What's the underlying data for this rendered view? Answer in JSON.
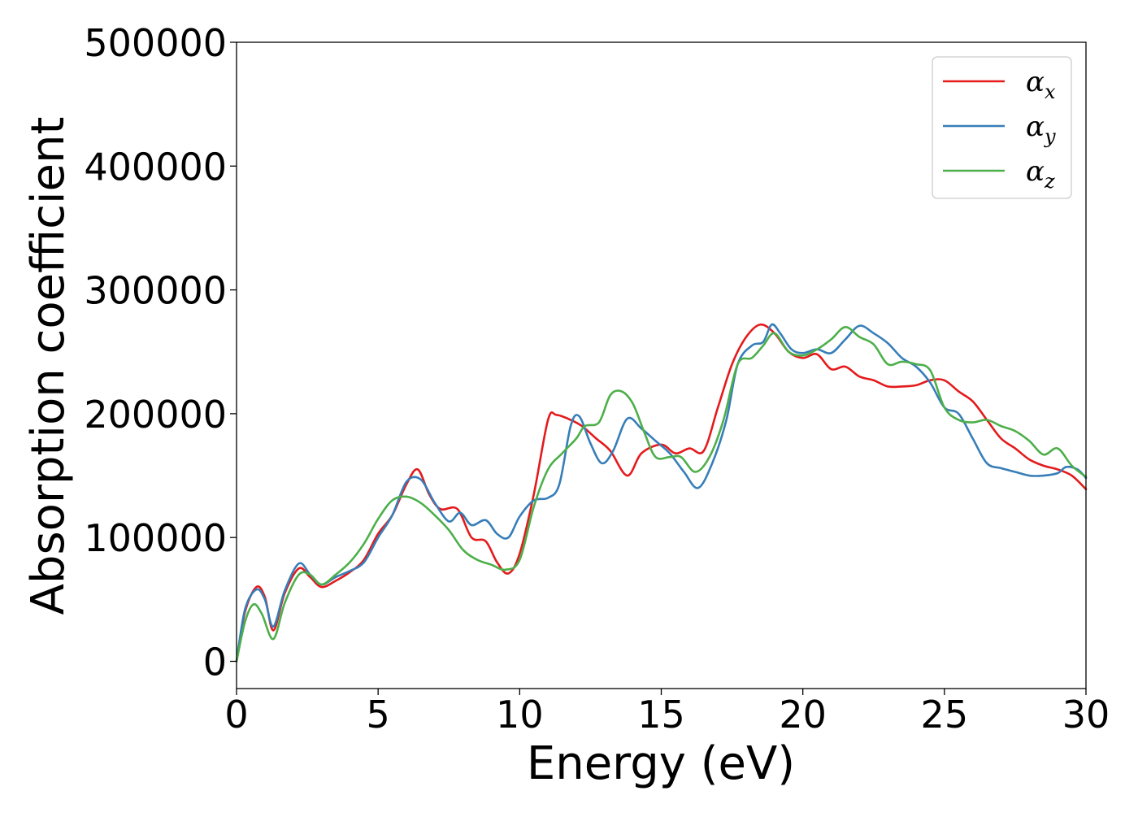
{
  "chart_data": {
    "type": "line",
    "title": "",
    "xlabel": "Energy (eV)",
    "ylabel": "Absorption coefficient",
    "xlim": [
      0,
      30
    ],
    "ylim": [
      -22000,
      500000
    ],
    "x_ticks": [
      0,
      5,
      10,
      15,
      20,
      25,
      30
    ],
    "y_ticks": [
      0,
      100000,
      200000,
      300000,
      400000,
      500000
    ],
    "grid": false,
    "legend_position": "top-right",
    "series": [
      {
        "name": "αx",
        "legend_symbol": "α",
        "legend_subscript": "x",
        "color": "#e41a1c",
        "points": [
          [
            0,
            0
          ],
          [
            0.3,
            40000
          ],
          [
            0.7,
            60000
          ],
          [
            1.0,
            52000
          ],
          [
            1.3,
            25000
          ],
          [
            1.7,
            55000
          ],
          [
            2.2,
            75000
          ],
          [
            2.6,
            68000
          ],
          [
            3.0,
            60000
          ],
          [
            3.5,
            65000
          ],
          [
            4.0,
            72000
          ],
          [
            4.5,
            82000
          ],
          [
            5.0,
            103000
          ],
          [
            5.5,
            118000
          ],
          [
            6.0,
            143000
          ],
          [
            6.4,
            155000
          ],
          [
            6.8,
            135000
          ],
          [
            7.2,
            123000
          ],
          [
            7.8,
            123000
          ],
          [
            8.3,
            100000
          ],
          [
            8.8,
            97000
          ],
          [
            9.2,
            80000
          ],
          [
            9.6,
            71000
          ],
          [
            10.0,
            87000
          ],
          [
            10.5,
            135000
          ],
          [
            11.0,
            195000
          ],
          [
            11.3,
            199000
          ],
          [
            11.8,
            195000
          ],
          [
            12.2,
            190000
          ],
          [
            12.7,
            180000
          ],
          [
            13.2,
            170000
          ],
          [
            13.8,
            150000
          ],
          [
            14.3,
            168000
          ],
          [
            15.0,
            175000
          ],
          [
            15.5,
            168000
          ],
          [
            16.0,
            172000
          ],
          [
            16.5,
            170000
          ],
          [
            17.0,
            205000
          ],
          [
            17.5,
            240000
          ],
          [
            18.0,
            262000
          ],
          [
            18.5,
            272000
          ],
          [
            19.0,
            265000
          ],
          [
            19.5,
            250000
          ],
          [
            20.0,
            245000
          ],
          [
            20.5,
            248000
          ],
          [
            21.0,
            236000
          ],
          [
            21.5,
            238000
          ],
          [
            22.0,
            230000
          ],
          [
            22.5,
            227000
          ],
          [
            23.0,
            222000
          ],
          [
            23.5,
            222000
          ],
          [
            24.0,
            223000
          ],
          [
            24.5,
            227000
          ],
          [
            25.0,
            227000
          ],
          [
            25.5,
            218000
          ],
          [
            26.0,
            210000
          ],
          [
            26.5,
            195000
          ],
          [
            27.0,
            180000
          ],
          [
            27.5,
            172000
          ],
          [
            28.0,
            163000
          ],
          [
            28.5,
            158000
          ],
          [
            29.0,
            155000
          ],
          [
            29.5,
            150000
          ],
          [
            30.0,
            139000
          ]
        ]
      },
      {
        "name": "αy",
        "legend_symbol": "α",
        "legend_subscript": "y",
        "color": "#377eb8",
        "points": [
          [
            0,
            0
          ],
          [
            0.3,
            42000
          ],
          [
            0.7,
            58000
          ],
          [
            1.0,
            50000
          ],
          [
            1.3,
            28000
          ],
          [
            1.7,
            57000
          ],
          [
            2.2,
            79000
          ],
          [
            2.6,
            70000
          ],
          [
            3.0,
            62000
          ],
          [
            3.5,
            68000
          ],
          [
            4.0,
            73000
          ],
          [
            4.5,
            80000
          ],
          [
            5.0,
            100000
          ],
          [
            5.5,
            118000
          ],
          [
            6.0,
            145000
          ],
          [
            6.5,
            147000
          ],
          [
            7.0,
            128000
          ],
          [
            7.5,
            113000
          ],
          [
            7.9,
            120000
          ],
          [
            8.3,
            110000
          ],
          [
            8.8,
            114000
          ],
          [
            9.2,
            103000
          ],
          [
            9.6,
            100000
          ],
          [
            10.0,
            117000
          ],
          [
            10.5,
            130000
          ],
          [
            11.0,
            132000
          ],
          [
            11.4,
            143000
          ],
          [
            11.8,
            190000
          ],
          [
            12.1,
            198000
          ],
          [
            12.5,
            176000
          ],
          [
            12.9,
            160000
          ],
          [
            13.3,
            170000
          ],
          [
            13.8,
            196000
          ],
          [
            14.3,
            188000
          ],
          [
            14.8,
            178000
          ],
          [
            15.3,
            168000
          ],
          [
            15.8,
            153000
          ],
          [
            16.3,
            140000
          ],
          [
            16.8,
            160000
          ],
          [
            17.3,
            195000
          ],
          [
            17.7,
            240000
          ],
          [
            18.2,
            255000
          ],
          [
            18.6,
            258000
          ],
          [
            18.9,
            272000
          ],
          [
            19.2,
            265000
          ],
          [
            19.6,
            252000
          ],
          [
            20.0,
            249000
          ],
          [
            20.5,
            252000
          ],
          [
            21.0,
            249000
          ],
          [
            21.5,
            260000
          ],
          [
            22.0,
            271000
          ],
          [
            22.5,
            265000
          ],
          [
            23.0,
            257000
          ],
          [
            23.5,
            245000
          ],
          [
            24.0,
            238000
          ],
          [
            24.5,
            225000
          ],
          [
            25.0,
            205000
          ],
          [
            25.5,
            200000
          ],
          [
            26.0,
            180000
          ],
          [
            26.5,
            160000
          ],
          [
            27.0,
            156000
          ],
          [
            27.5,
            153000
          ],
          [
            28.0,
            150000
          ],
          [
            28.5,
            150000
          ],
          [
            29.0,
            152000
          ],
          [
            29.3,
            157000
          ],
          [
            29.7,
            155000
          ],
          [
            30.0,
            148000
          ]
        ]
      },
      {
        "name": "αz",
        "legend_symbol": "α",
        "legend_subscript": "z",
        "color": "#4daf4a",
        "points": [
          [
            0,
            0
          ],
          [
            0.3,
            32000
          ],
          [
            0.6,
            46000
          ],
          [
            0.9,
            38000
          ],
          [
            1.3,
            18000
          ],
          [
            1.7,
            47000
          ],
          [
            2.2,
            70000
          ],
          [
            2.6,
            70000
          ],
          [
            3.0,
            62000
          ],
          [
            3.5,
            70000
          ],
          [
            4.0,
            80000
          ],
          [
            4.5,
            95000
          ],
          [
            5.0,
            115000
          ],
          [
            5.5,
            130000
          ],
          [
            6.0,
            133000
          ],
          [
            6.5,
            128000
          ],
          [
            7.0,
            118000
          ],
          [
            7.5,
            106000
          ],
          [
            8.0,
            90000
          ],
          [
            8.5,
            82000
          ],
          [
            9.0,
            78000
          ],
          [
            9.5,
            74000
          ],
          [
            10.0,
            82000
          ],
          [
            10.5,
            125000
          ],
          [
            11.0,
            155000
          ],
          [
            11.5,
            168000
          ],
          [
            12.0,
            180000
          ],
          [
            12.3,
            190000
          ],
          [
            12.8,
            193000
          ],
          [
            13.2,
            215000
          ],
          [
            13.6,
            218000
          ],
          [
            14.0,
            208000
          ],
          [
            14.4,
            185000
          ],
          [
            14.8,
            165000
          ],
          [
            15.3,
            165000
          ],
          [
            15.7,
            165000
          ],
          [
            16.2,
            153000
          ],
          [
            16.7,
            165000
          ],
          [
            17.2,
            195000
          ],
          [
            17.7,
            240000
          ],
          [
            18.2,
            245000
          ],
          [
            18.6,
            255000
          ],
          [
            19.0,
            265000
          ],
          [
            19.5,
            250000
          ],
          [
            20.0,
            247000
          ],
          [
            20.5,
            252000
          ],
          [
            21.0,
            260000
          ],
          [
            21.5,
            270000
          ],
          [
            22.0,
            262000
          ],
          [
            22.5,
            256000
          ],
          [
            23.0,
            240000
          ],
          [
            23.5,
            242000
          ],
          [
            24.0,
            240000
          ],
          [
            24.5,
            235000
          ],
          [
            25.0,
            205000
          ],
          [
            25.5,
            195000
          ],
          [
            26.0,
            193000
          ],
          [
            26.5,
            195000
          ],
          [
            27.0,
            190000
          ],
          [
            27.5,
            186000
          ],
          [
            28.0,
            178000
          ],
          [
            28.5,
            167000
          ],
          [
            29.0,
            172000
          ],
          [
            29.5,
            158000
          ],
          [
            30.0,
            149000
          ]
        ]
      }
    ]
  }
}
